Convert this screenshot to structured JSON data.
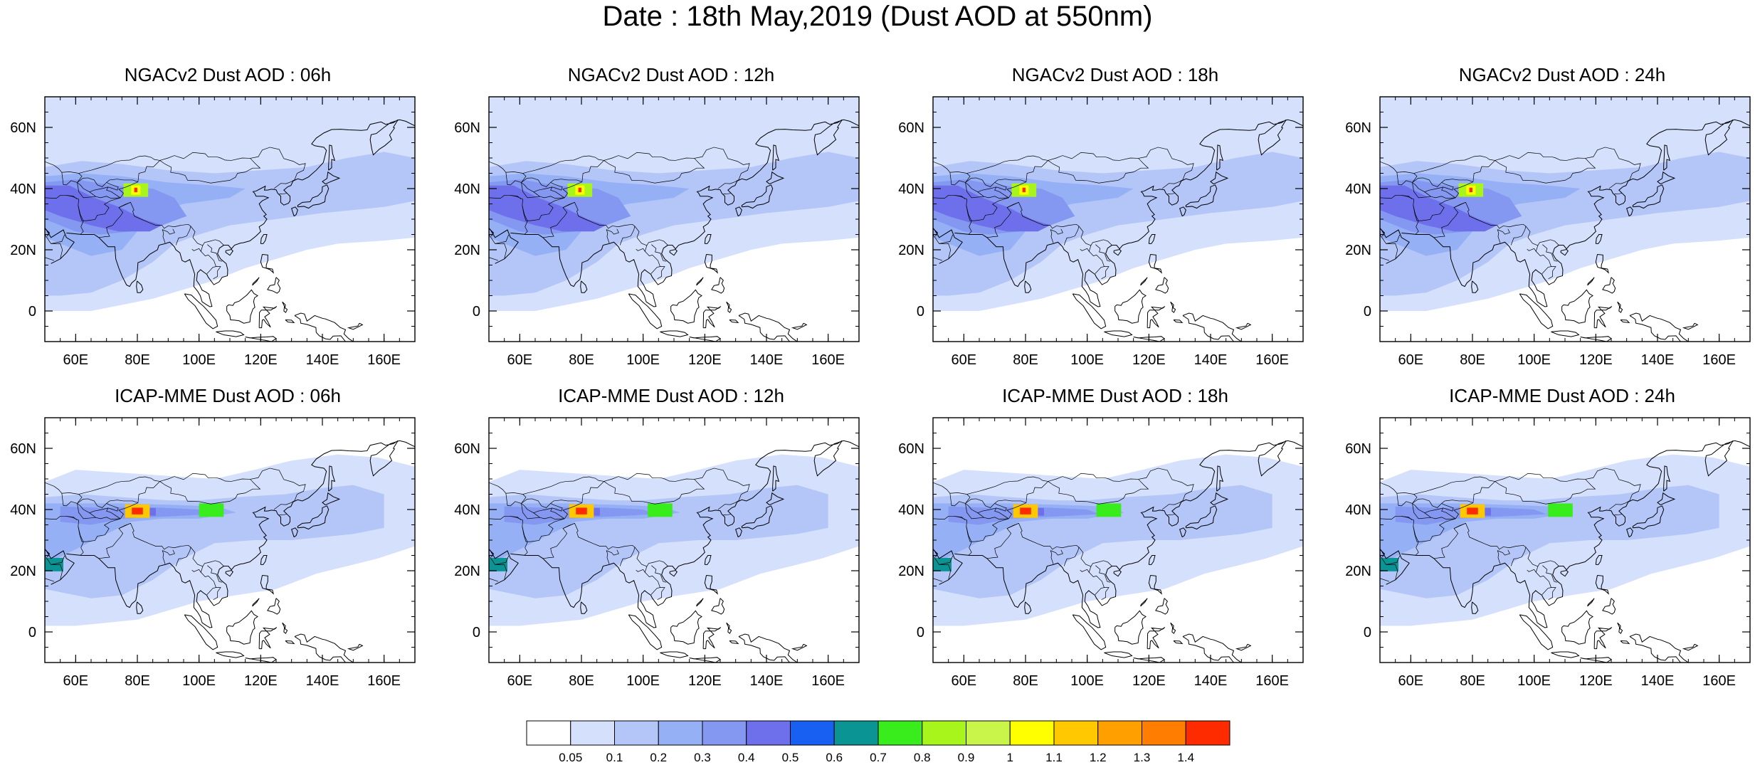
{
  "title": "Date : 18th May,2019 (Dust AOD at 550nm)",
  "panels": [
    {
      "title": "NGACv2 Dust AOD : 06h",
      "model": "NGACv2",
      "hour": "06h"
    },
    {
      "title": "NGACv2 Dust AOD : 12h",
      "model": "NGACv2",
      "hour": "12h"
    },
    {
      "title": "NGACv2 Dust AOD : 18h",
      "model": "NGACv2",
      "hour": "18h"
    },
    {
      "title": "NGACv2 Dust AOD : 24h",
      "model": "NGACv2",
      "hour": "24h"
    },
    {
      "title": "ICAP-MME Dust AOD : 06h",
      "model": "ICAP-MME",
      "hour": "06h"
    },
    {
      "title": "ICAP-MME Dust AOD : 12h",
      "model": "ICAP-MME",
      "hour": "12h"
    },
    {
      "title": "ICAP-MME Dust AOD : 18h",
      "model": "ICAP-MME",
      "hour": "18h"
    },
    {
      "title": "ICAP-MME Dust AOD : 24h",
      "model": "ICAP-MME",
      "hour": "24h"
    }
  ],
  "axes": {
    "lon_range": [
      50,
      170
    ],
    "lat_range": [
      -10,
      70
    ],
    "lon_ticks": [
      {
        "v": 60,
        "label": "60E"
      },
      {
        "v": 80,
        "label": "80E"
      },
      {
        "v": 100,
        "label": "100E"
      },
      {
        "v": 120,
        "label": "120E"
      },
      {
        "v": 140,
        "label": "140E"
      },
      {
        "v": 160,
        "label": "160E"
      }
    ],
    "lat_ticks": [
      {
        "v": 0,
        "label": "0"
      },
      {
        "v": 20,
        "label": "20N"
      },
      {
        "v": 40,
        "label": "40N"
      },
      {
        "v": 60,
        "label": "60N"
      }
    ]
  },
  "colorbar": {
    "levels": [
      "0.05",
      "0.1",
      "0.2",
      "0.3",
      "0.4",
      "0.5",
      "0.6",
      "0.7",
      "0.8",
      "0.9",
      "1",
      "1.1",
      "1.2",
      "1.3",
      "1.4"
    ],
    "colors": [
      "#ffffff",
      "#d4e0fc",
      "#b4c6f8",
      "#96b0f5",
      "#8497f1",
      "#6e70eb",
      "#1760f2",
      "#0a9494",
      "#39ec1b",
      "#a8f51b",
      "#c9f44a",
      "#ffff00",
      "#ffc800",
      "#ffa000",
      "#ff7d00",
      "#ff2b00"
    ]
  }
}
